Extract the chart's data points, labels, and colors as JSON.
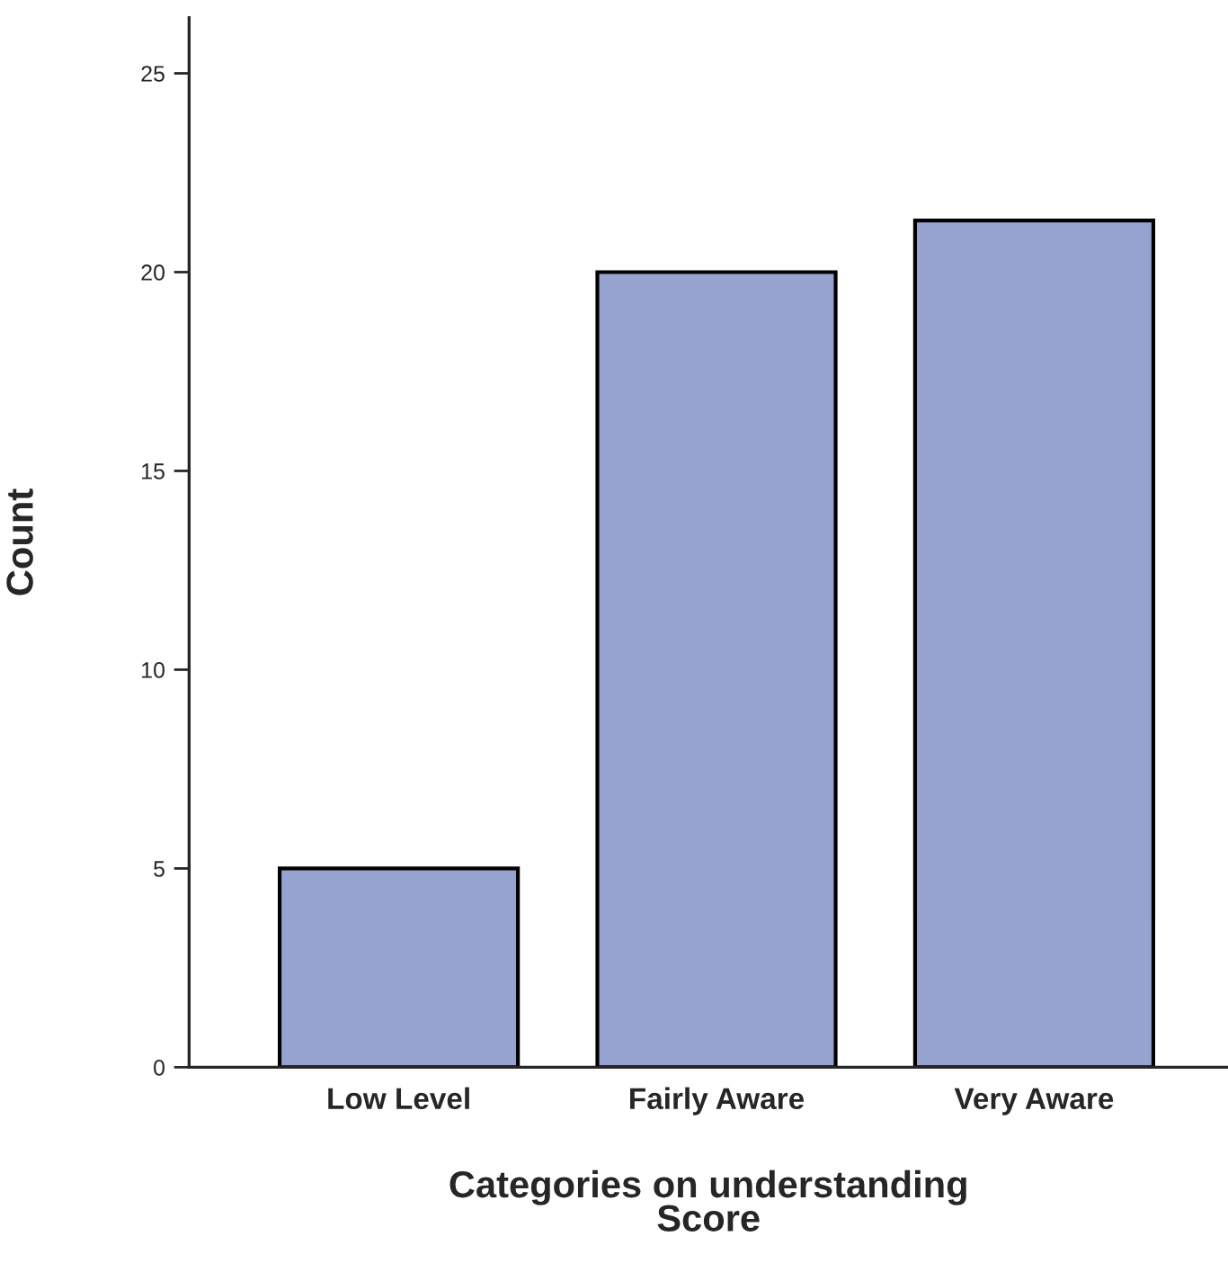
{
  "chart_data": {
    "type": "bar",
    "xlabel": "Categories on understanding\nScore",
    "ylabel": "Count",
    "categories": [
      "Low Level",
      "Fairly Aware",
      "Very Aware"
    ],
    "values": [
      5,
      20,
      21.3
    ],
    "color": "#96a3d0",
    "ylim": [
      0,
      26.4
    ],
    "yticks": [
      0,
      5,
      10,
      15,
      20,
      25
    ],
    "grid": false
  }
}
